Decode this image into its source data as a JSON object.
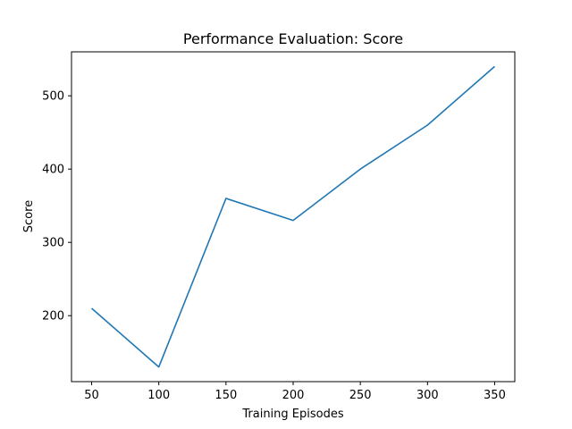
{
  "chart_data": {
    "type": "line",
    "title": "Performance Evaluation: Score",
    "xlabel": "Training Episodes",
    "ylabel": "Score",
    "x": [
      50,
      100,
      150,
      200,
      250,
      300,
      350
    ],
    "series": [
      {
        "values": [
          210,
          130,
          360,
          330,
          400,
          460,
          540
        ],
        "color": "#1f77b4"
      }
    ],
    "xlim": [
      35,
      365
    ],
    "ylim": [
      110,
      560
    ],
    "xticks": [
      "50",
      "100",
      "150",
      "200",
      "250",
      "300",
      "350"
    ],
    "yticks": [
      "200",
      "300",
      "400",
      "500"
    ],
    "grid": false,
    "legend": "none"
  }
}
